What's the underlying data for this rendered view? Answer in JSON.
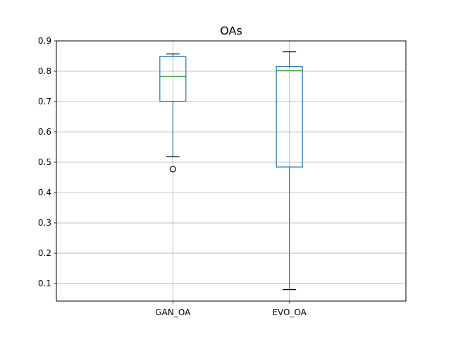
{
  "chart_data": {
    "type": "box",
    "title": "OAs",
    "xlabel": "",
    "ylabel": "",
    "categories": [
      "GAN_OA",
      "EVO_OA"
    ],
    "ylim": [
      0.042,
      0.9
    ],
    "yticks": [
      0.1,
      0.2,
      0.3,
      0.4,
      0.5,
      0.6,
      0.7,
      0.8,
      0.9
    ],
    "ytick_labels": [
      "0.1",
      "0.2",
      "0.3",
      "0.4",
      "0.5",
      "0.6",
      "0.7",
      "0.8",
      "0.9"
    ],
    "grid": true,
    "boxes": [
      {
        "category": "GAN_OA",
        "whisker_low": 0.518,
        "q1": 0.701,
        "median": 0.783,
        "q3": 0.848,
        "whisker_high": 0.857,
        "outliers": [
          0.477
        ]
      },
      {
        "category": "EVO_OA",
        "whisker_low": 0.08,
        "q1": 0.484,
        "median": 0.803,
        "q3": 0.815,
        "whisker_high": 0.864,
        "outliers": []
      }
    ],
    "colors": {
      "box": "#1f77b4",
      "median": "#2ca02c",
      "whisker_cap": "#000000",
      "outlier": "#000000",
      "grid": "#b0b0b0"
    }
  }
}
